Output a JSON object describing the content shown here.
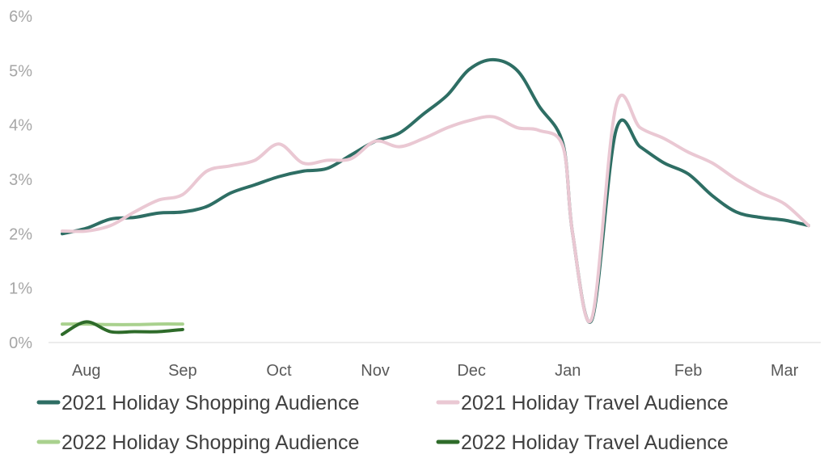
{
  "chart_data": {
    "type": "line",
    "title": "",
    "xlabel": "",
    "ylabel": "",
    "ylim": [
      0,
      6
    ],
    "y_ticks": [
      0,
      1,
      2,
      3,
      4,
      5,
      6
    ],
    "y_tick_labels": [
      "0%",
      "1%",
      "2%",
      "3%",
      "4%",
      "5%",
      "6%"
    ],
    "x_range": [
      0,
      32
    ],
    "x_ticks": [
      1,
      5,
      9,
      13,
      17,
      21,
      26,
      30
    ],
    "x_tick_labels": [
      "Aug",
      "Sep",
      "Oct",
      "Nov",
      "Dec",
      "Jan",
      "Feb",
      "Mar"
    ],
    "grid": false,
    "legend_position": "bottom",
    "series": [
      {
        "name": "2021 Holiday Shopping Audience",
        "color": "#2e6e64",
        "x": [
          0,
          1,
          2,
          3,
          4,
          5,
          6,
          7,
          8,
          9,
          10,
          11,
          12,
          13,
          14,
          15,
          16,
          16.9,
          17.9,
          18.9,
          19.8,
          20.8,
          21.2,
          22,
          23,
          24,
          25,
          26,
          27,
          28,
          29,
          30,
          31
        ],
        "values": [
          2.0,
          2.1,
          2.27,
          2.3,
          2.38,
          2.4,
          2.5,
          2.75,
          2.9,
          3.05,
          3.15,
          3.2,
          3.45,
          3.7,
          3.85,
          4.2,
          4.55,
          5.02,
          5.2,
          5.0,
          4.35,
          3.65,
          2.0,
          0.42,
          3.9,
          3.6,
          3.3,
          3.1,
          2.7,
          2.4,
          2.3,
          2.25,
          2.15
        ]
      },
      {
        "name": "2021 Holiday Travel Audience",
        "color": "#eac8d3",
        "x": [
          0,
          1,
          2,
          3,
          4,
          5,
          6,
          7,
          8,
          9,
          10,
          11,
          12,
          13,
          14,
          15,
          16,
          16.9,
          17.9,
          18.9,
          19.8,
          20.8,
          21.2,
          22,
          23,
          24,
          25,
          26,
          27,
          28,
          29,
          30,
          31
        ],
        "values": [
          2.05,
          2.05,
          2.15,
          2.4,
          2.62,
          2.72,
          3.15,
          3.25,
          3.35,
          3.65,
          3.3,
          3.35,
          3.38,
          3.7,
          3.6,
          3.75,
          3.95,
          4.08,
          4.15,
          3.95,
          3.9,
          3.6,
          2.0,
          0.45,
          4.35,
          3.95,
          3.75,
          3.5,
          3.3,
          3.0,
          2.75,
          2.55,
          2.15
        ]
      },
      {
        "name": "2022 Holiday Shopping Audience",
        "color": "#a9d18e",
        "x": [
          0,
          1,
          2,
          3,
          4,
          5
        ],
        "values": [
          0.34,
          0.34,
          0.33,
          0.33,
          0.34,
          0.34
        ]
      },
      {
        "name": "2022 Holiday Travel Audience",
        "color": "#2e6b2a",
        "x": [
          0,
          1,
          2,
          3,
          4,
          5
        ],
        "values": [
          0.15,
          0.38,
          0.2,
          0.2,
          0.2,
          0.24
        ]
      }
    ]
  }
}
